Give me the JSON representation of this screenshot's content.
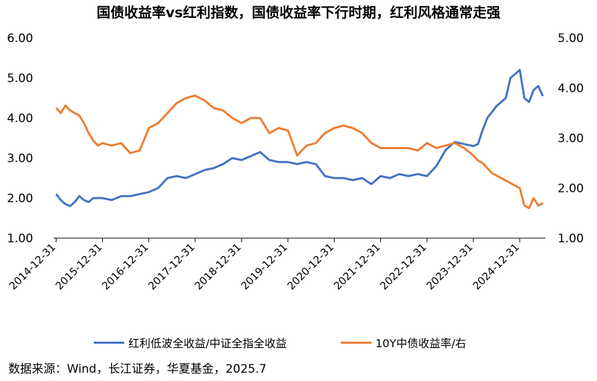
{
  "chart_data": {
    "type": "line",
    "title": "国债收益率vs红利指数，国债收益率下行时期，红利风格通常走强",
    "source": "数据来源：Wind，长江证券，华夏基金，2025.7",
    "x_tick_labels": [
      "2014-12-31",
      "2015-12-31",
      "2016-12-31",
      "2017-12-31",
      "2018-12-31",
      "2019-12-31",
      "2020-12-31",
      "2021-12-31",
      "2022-12-31",
      "2023-12-31",
      "2024-12-31"
    ],
    "x_range": [
      2014.95,
      2025.55
    ],
    "left_axis": {
      "ticks": [
        "1.00",
        "2.00",
        "3.00",
        "4.00",
        "5.00",
        "6.00"
      ],
      "ylim": [
        1.0,
        6.0
      ]
    },
    "right_axis": {
      "ticks": [
        "1.00",
        "2.00",
        "3.00",
        "4.00",
        "5.00"
      ],
      "ylim": [
        1.0,
        5.0
      ]
    },
    "grid": false,
    "legend_position": "bottom",
    "series": [
      {
        "name": "红利低波全收益/中证全指全收益",
        "axis": "left",
        "color": "#4472C4",
        "x": [
          2015.0,
          2015.1,
          2015.2,
          2015.3,
          2015.4,
          2015.5,
          2015.6,
          2015.7,
          2015.8,
          2015.9,
          2016.0,
          2016.2,
          2016.4,
          2016.6,
          2016.8,
          2017.0,
          2017.2,
          2017.4,
          2017.6,
          2017.8,
          2018.0,
          2018.2,
          2018.4,
          2018.6,
          2018.8,
          2019.0,
          2019.2,
          2019.4,
          2019.6,
          2019.8,
          2020.0,
          2020.2,
          2020.4,
          2020.6,
          2020.8,
          2021.0,
          2021.2,
          2021.4,
          2021.6,
          2021.8,
          2022.0,
          2022.2,
          2022.4,
          2022.6,
          2022.8,
          2023.0,
          2023.2,
          2023.4,
          2023.6,
          2023.8,
          2024.0,
          2024.1,
          2024.2,
          2024.3,
          2024.4,
          2024.5,
          2024.6,
          2024.7,
          2024.8,
          2024.9,
          2025.0,
          2025.1,
          2025.2,
          2025.3,
          2025.4,
          2025.5
        ],
        "values": [
          2.1,
          1.95,
          1.85,
          1.8,
          1.9,
          2.05,
          1.95,
          1.9,
          2.0,
          2.0,
          2.0,
          1.95,
          2.05,
          2.05,
          2.1,
          2.15,
          2.25,
          2.5,
          2.55,
          2.5,
          2.6,
          2.7,
          2.75,
          2.85,
          3.0,
          2.95,
          3.05,
          3.15,
          2.95,
          2.9,
          2.9,
          2.85,
          2.9,
          2.85,
          2.55,
          2.5,
          2.5,
          2.45,
          2.5,
          2.35,
          2.55,
          2.5,
          2.6,
          2.55,
          2.6,
          2.55,
          2.8,
          3.2,
          3.4,
          3.35,
          3.3,
          3.35,
          3.7,
          4.0,
          4.15,
          4.3,
          4.4,
          4.5,
          5.0,
          5.1,
          5.2,
          4.5,
          4.4,
          4.7,
          4.8,
          4.55
        ]
      },
      {
        "name": "10Y中债收益率/右",
        "axis": "right",
        "color": "#ED7D31",
        "x": [
          2015.0,
          2015.1,
          2015.2,
          2015.3,
          2015.4,
          2015.5,
          2015.6,
          2015.7,
          2015.8,
          2015.9,
          2016.0,
          2016.2,
          2016.4,
          2016.6,
          2016.8,
          2017.0,
          2017.2,
          2017.4,
          2017.6,
          2017.8,
          2018.0,
          2018.2,
          2018.4,
          2018.6,
          2018.8,
          2019.0,
          2019.2,
          2019.4,
          2019.6,
          2019.8,
          2020.0,
          2020.2,
          2020.4,
          2020.6,
          2020.8,
          2021.0,
          2021.2,
          2021.4,
          2021.6,
          2021.8,
          2022.0,
          2022.2,
          2022.4,
          2022.6,
          2022.8,
          2023.0,
          2023.2,
          2023.4,
          2023.6,
          2023.8,
          2024.0,
          2024.1,
          2024.2,
          2024.3,
          2024.4,
          2024.5,
          2024.6,
          2024.7,
          2024.8,
          2024.9,
          2025.0,
          2025.1,
          2025.2,
          2025.3,
          2025.4,
          2025.5
        ],
        "values": [
          3.6,
          3.5,
          3.65,
          3.55,
          3.5,
          3.45,
          3.3,
          3.1,
          2.95,
          2.85,
          2.9,
          2.85,
          2.9,
          2.7,
          2.75,
          3.2,
          3.3,
          3.5,
          3.7,
          3.8,
          3.85,
          3.75,
          3.6,
          3.55,
          3.4,
          3.3,
          3.4,
          3.4,
          3.1,
          3.2,
          3.15,
          2.65,
          2.85,
          2.9,
          3.1,
          3.2,
          3.25,
          3.2,
          3.1,
          2.9,
          2.8,
          2.8,
          2.8,
          2.8,
          2.75,
          2.9,
          2.8,
          2.85,
          2.9,
          2.8,
          2.65,
          2.55,
          2.5,
          2.4,
          2.3,
          2.25,
          2.2,
          2.15,
          2.1,
          2.05,
          2.0,
          1.65,
          1.6,
          1.8,
          1.65,
          1.7
        ]
      }
    ]
  }
}
